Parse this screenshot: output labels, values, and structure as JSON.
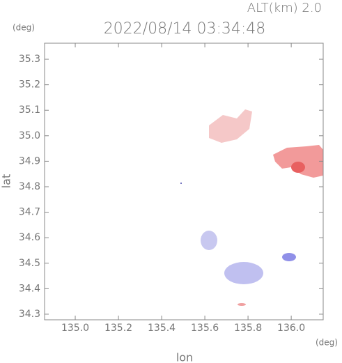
{
  "chart_data": {
    "type": "map",
    "title": "2022/08/14 03:34:48",
    "subtitle": "ALT(km) 2.0",
    "x_label": "lon",
    "y_label": "lat",
    "x_unit": "(deg)",
    "y_unit": "(deg)",
    "xlim": [
      134.858,
      136.148
    ],
    "ylim": [
      34.278,
      35.363
    ],
    "xticks": [
      {
        "value": 135,
        "label": "135.0"
      },
      135.2,
      135.4,
      135.6,
      135.8,
      {
        "value": 136,
        "label": "136.0"
      }
    ],
    "yticks": [
      34.3,
      34.4,
      34.5,
      34.6,
      34.7,
      34.8,
      34.9,
      {
        "value": 35,
        "label": "35.0"
      },
      35.1,
      35.2,
      35.3
    ]
  }
}
